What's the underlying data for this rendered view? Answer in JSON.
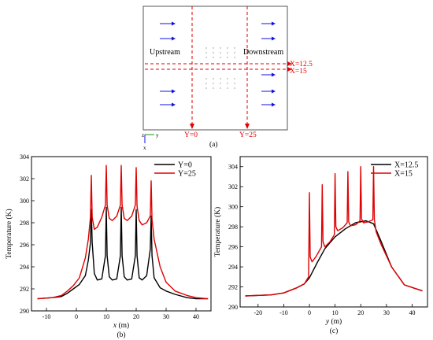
{
  "panel_a": {
    "upstream": "Upstream",
    "downstream": "Downstream",
    "x_lines": [
      "X=12.5",
      "X=15"
    ],
    "y_lines": [
      "Y=0",
      "Y=25"
    ],
    "caption": "(a)",
    "axis_z": "z",
    "axis_y": "y",
    "axis_x": "x",
    "arrow_color": "#1010e0",
    "line_color": "#e00000"
  },
  "chart_data": [
    {
      "id": "b",
      "type": "line",
      "caption": "(b)",
      "xlabel": "x (m)",
      "ylabel": "Temperature (K)",
      "xlim": [
        -15,
        45
      ],
      "ylim": [
        290,
        304
      ],
      "xticks": [
        -10,
        0,
        10,
        20,
        30,
        40
      ],
      "yticks": [
        290,
        292,
        294,
        296,
        298,
        300,
        302,
        304
      ],
      "legend": "top-right",
      "series": [
        {
          "name": "Y=0",
          "color": "#000000",
          "x": [
            -13,
            -8,
            -5,
            -3,
            -1,
            1,
            3,
            4,
            4.7,
            5,
            5.3,
            6,
            7,
            8.5,
            9.7,
            10,
            10.3,
            11,
            12,
            13.5,
            14.7,
            15,
            15.3,
            16,
            17,
            18.5,
            19.7,
            20,
            20.3,
            21,
            22,
            23.5,
            24.7,
            25,
            25.3,
            26,
            28,
            30,
            33,
            37,
            40,
            44
          ],
          "y": [
            291.1,
            291.2,
            291.3,
            291.6,
            292.0,
            292.4,
            293.2,
            294.6,
            296.2,
            299.2,
            296.2,
            293.4,
            292.8,
            292.9,
            295.0,
            299.4,
            295.0,
            293.1,
            292.8,
            292.9,
            295.0,
            299.4,
            295.0,
            293.1,
            292.8,
            292.9,
            295.0,
            299.2,
            295.0,
            293.0,
            292.8,
            293.2,
            295.6,
            298.6,
            295.0,
            293.0,
            292.1,
            291.8,
            291.5,
            291.2,
            291.1,
            291.1
          ]
        },
        {
          "name": "Y=25",
          "color": "#e00000",
          "x": [
            -13,
            -8,
            -5,
            -3,
            -1,
            1,
            3,
            4,
            4.7,
            5,
            5.3,
            6,
            7,
            8.5,
            9.7,
            10,
            10.3,
            11,
            12,
            13.5,
            14.7,
            15,
            15.3,
            16,
            17,
            18.5,
            19.7,
            20,
            20.3,
            21,
            22,
            23.5,
            24.7,
            25,
            25.3,
            26,
            28,
            30,
            33,
            37,
            40,
            44
          ],
          "y": [
            291.1,
            291.2,
            291.4,
            291.8,
            292.3,
            293.0,
            294.8,
            296.5,
            298.5,
            302.3,
            298.5,
            297.4,
            297.6,
            298.5,
            299.6,
            303.2,
            299.6,
            298.4,
            298.2,
            298.6,
            299.6,
            303.2,
            299.6,
            298.4,
            298.2,
            298.6,
            299.6,
            303.0,
            299.5,
            298.2,
            297.8,
            298.0,
            298.6,
            301.8,
            298.3,
            296.5,
            294.0,
            292.6,
            291.8,
            291.4,
            291.2,
            291.1
          ]
        }
      ]
    },
    {
      "id": "c",
      "type": "line",
      "caption": "(c)",
      "xlabel": "y (m)",
      "ylabel": "Temperature (K)",
      "xlim": [
        -27,
        46
      ],
      "ylim": [
        290,
        305
      ],
      "xticks": [
        -20,
        -10,
        0,
        10,
        20,
        30,
        40
      ],
      "yticks": [
        290,
        292,
        294,
        296,
        298,
        300,
        302,
        304
      ],
      "legend": "top-right",
      "series": [
        {
          "name": "X=12.5",
          "color": "#000000",
          "x": [
            -25,
            -15,
            -10,
            -5,
            -2,
            0,
            3,
            6,
            10,
            14,
            18,
            22,
            25,
            28,
            32,
            37,
            44
          ],
          "y": [
            291.1,
            291.2,
            291.4,
            291.9,
            292.3,
            292.9,
            294.4,
            295.8,
            297.0,
            297.8,
            298.4,
            298.6,
            298.3,
            296.5,
            294.0,
            292.2,
            291.6
          ]
        },
        {
          "name": "X=15",
          "color": "#e00000",
          "x": [
            -25,
            -15,
            -10,
            -5,
            -2,
            -0.3,
            0,
            0.3,
            1,
            2.5,
            4.7,
            5,
            5.3,
            6,
            8,
            9.7,
            10,
            10.3,
            11,
            13,
            14.7,
            15,
            15.3,
            16,
            18,
            19.7,
            20,
            20.3,
            21,
            23,
            24.7,
            25,
            25.3,
            26,
            28,
            32,
            37,
            44
          ],
          "y": [
            291.1,
            291.2,
            291.4,
            291.9,
            292.3,
            293.0,
            301.4,
            295.0,
            294.5,
            295.0,
            296.0,
            302.2,
            296.5,
            296.0,
            296.5,
            297.2,
            303.3,
            298.0,
            297.6,
            297.9,
            298.4,
            303.5,
            298.5,
            298.1,
            298.2,
            298.6,
            304.0,
            298.8,
            298.4,
            298.5,
            298.7,
            304.0,
            298.7,
            297.5,
            296.2,
            294.0,
            292.2,
            291.6
          ]
        }
      ]
    }
  ]
}
